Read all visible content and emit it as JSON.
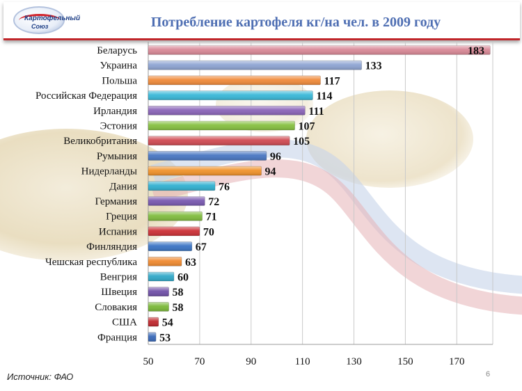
{
  "header": {
    "logo_text_top": "Картофельный",
    "logo_text_bottom": "Союз",
    "title": "Потребление картофеля кг/на чел. в 2009 году"
  },
  "chart_data": {
    "type": "bar",
    "orientation": "horizontal",
    "title": "Потребление картофеля кг/на чел. в 2009 году",
    "xlabel": "",
    "ylabel": "",
    "xlim": [
      50,
      184
    ],
    "xticks": [
      50,
      70,
      90,
      110,
      130,
      150,
      170
    ],
    "grid": "vertical",
    "categories": [
      "Беларусь",
      "Украина",
      "Польша",
      "Российская Федерация",
      "Ирландия",
      "Эстония",
      "Великобритания",
      "Румыния",
      "Нидерланды",
      "Дания",
      "Германия",
      "Греция",
      "Испания",
      "Финляндия",
      "Чешская республика",
      "Венгрия",
      "Швеция",
      "Словакия",
      "США",
      "Франция"
    ],
    "values": [
      183,
      133,
      117,
      114,
      111,
      107,
      105,
      96,
      94,
      76,
      72,
      71,
      70,
      67,
      63,
      60,
      58,
      58,
      54,
      53
    ],
    "bar_colors": [
      "#d88896",
      "#8ea4d2",
      "#f08a3a",
      "#38b8d8",
      "#8a64b8",
      "#86c040",
      "#d04a52",
      "#4876c2",
      "#f0922a",
      "#30b0d0",
      "#7858b0",
      "#80bc3e",
      "#cc3036",
      "#3a74c4",
      "#f08a30",
      "#30a8c8",
      "#7050a8",
      "#7ab838",
      "#c0282e",
      "#3868b8"
    ]
  },
  "footer": {
    "source": "Источник: ФАО",
    "page_number": "6"
  }
}
